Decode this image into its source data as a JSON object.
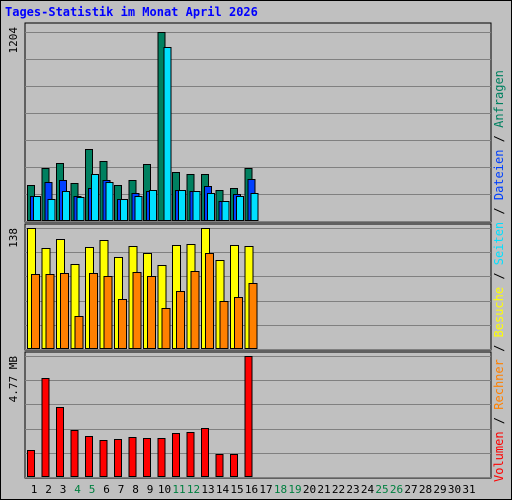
{
  "title": "Tages-Statistik im Monat April 2026",
  "colors": {
    "anfragen": "#008060",
    "dateien": "#0040ff",
    "seiten": "#00e0ff",
    "besuche": "#ffff00",
    "rechner": "#ff8000",
    "volumen": "#ff0000",
    "title": "#0000ff",
    "background": "#c0c0c0",
    "grid": "#808080",
    "weekend_label": "#008040",
    "weekday_label": "#000000"
  },
  "days": [
    "1",
    "2",
    "3",
    "4",
    "5",
    "6",
    "7",
    "8",
    "9",
    "10",
    "11",
    "12",
    "13",
    "14",
    "15",
    "16",
    "17",
    "18",
    "19",
    "20",
    "21",
    "22",
    "23",
    "24",
    "25",
    "26",
    "27",
    "28",
    "29",
    "30",
    "31"
  ],
  "weekend_days": [
    "4",
    "5",
    "11",
    "12",
    "18",
    "19",
    "25",
    "26"
  ],
  "right_legend": {
    "volumen": "Volumen",
    "sep1": " / ",
    "rechner": "Rechner",
    "sep2": " / ",
    "besuche": "Besuche",
    "sep3": " / ",
    "seiten": "Seiten",
    "sep4": " / ",
    "dateien": "Dateien",
    "sep5": " / ",
    "anfragen": "Anfragen"
  },
  "chart_data": [
    {
      "type": "bar",
      "panel": "top",
      "max_label": "1204",
      "ylim": [
        0,
        1204
      ],
      "grid": true,
      "series": [
        {
          "name": "Anfragen",
          "values": [
            230,
            340,
            370,
            240,
            460,
            380,
            230,
            260,
            360,
            1204,
            310,
            300,
            300,
            200,
            210,
            340,
            0,
            0,
            0,
            0,
            0,
            0,
            0,
            0,
            0,
            0,
            0,
            0,
            0,
            0,
            0
          ]
        },
        {
          "name": "Dateien",
          "values": [
            160,
            250,
            260,
            160,
            210,
            260,
            140,
            180,
            190,
            0,
            200,
            190,
            220,
            130,
            170,
            270,
            0,
            0,
            0,
            0,
            0,
            0,
            0,
            0,
            0,
            0,
            0,
            0,
            0,
            0,
            0
          ]
        },
        {
          "name": "Seiten",
          "values": [
            160,
            140,
            190,
            150,
            300,
            250,
            140,
            160,
            200,
            1110,
            200,
            190,
            180,
            130,
            160,
            180,
            0,
            0,
            0,
            0,
            0,
            0,
            0,
            0,
            0,
            0,
            0,
            0,
            0,
            0,
            0
          ]
        }
      ]
    },
    {
      "type": "bar",
      "panel": "middle",
      "max_label": "138",
      "ylim": [
        0,
        138
      ],
      "grid": true,
      "series": [
        {
          "name": "Besuche",
          "values": [
            138,
            115,
            125,
            97,
            116,
            124,
            105,
            118,
            110,
            96,
            119,
            120,
            138,
            101,
            119,
            118,
            0,
            0,
            0,
            0,
            0,
            0,
            0,
            0,
            0,
            0,
            0,
            0,
            0,
            0,
            0
          ]
        },
        {
          "name": "Rechner",
          "values": [
            85,
            86,
            87,
            38,
            87,
            83,
            57,
            88,
            83,
            47,
            66,
            89,
            110,
            55,
            59,
            75,
            0,
            0,
            0,
            0,
            0,
            0,
            0,
            0,
            0,
            0,
            0,
            0,
            0,
            0,
            0
          ]
        }
      ]
    },
    {
      "type": "bar",
      "panel": "bottom",
      "max_label": "4.77 MB",
      "ylim": [
        0,
        4.77
      ],
      "grid": true,
      "series": [
        {
          "name": "Volumen",
          "values": [
            1.07,
            3.89,
            2.76,
            1.84,
            1.63,
            1.44,
            1.49,
            1.59,
            1.55,
            1.55,
            1.73,
            1.77,
            1.94,
            0.92,
            0.92,
            4.77,
            0,
            0,
            0,
            0,
            0,
            0,
            0,
            0,
            0,
            0,
            0,
            0,
            0,
            0,
            0
          ]
        }
      ]
    }
  ]
}
